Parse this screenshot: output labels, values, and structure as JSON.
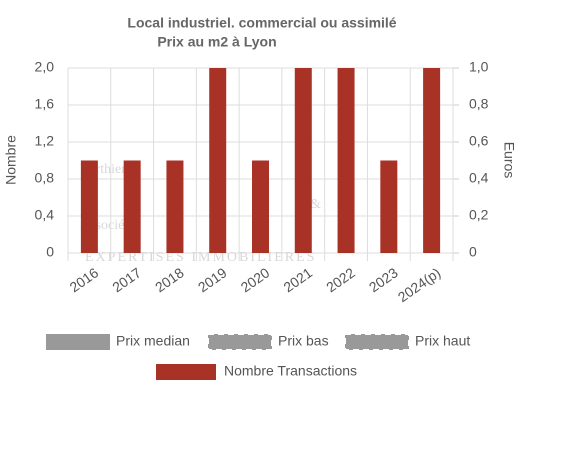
{
  "chart_data": {
    "type": "bar",
    "title": "Local industriel. commercial ou assimilé",
    "subtitle": "Prix au m2 à Lyon",
    "y_label": "Nombre",
    "y2_label": "Euros",
    "watermark": {
      "line1": "Berthier",
      "line2": "Associés",
      "symbol": "&",
      "tagline": "EXPERTISES IMMOBILIERES"
    },
    "categories": [
      "2016",
      "2017",
      "2018",
      "2019",
      "2020",
      "2021",
      "2022",
      "2023",
      "2024(p)"
    ],
    "series": [
      {
        "name": "Prix median",
        "color": "#999999",
        "style": "solid",
        "axis": "y2",
        "values": [
          null,
          null,
          null,
          null,
          null,
          null,
          null,
          null,
          null
        ]
      },
      {
        "name": "Prix bas",
        "color": "#999999",
        "style": "dashed",
        "axis": "y2",
        "values": [
          null,
          null,
          null,
          null,
          null,
          null,
          null,
          null,
          null
        ]
      },
      {
        "name": "Prix haut",
        "color": "#999999",
        "style": "dashed",
        "axis": "y2",
        "values": [
          null,
          null,
          null,
          null,
          null,
          null,
          null,
          null,
          null
        ]
      },
      {
        "name": "Nombre Transactions",
        "color": "#a93226",
        "style": "bar",
        "values": [
          1,
          1,
          1,
          2,
          1,
          2,
          2,
          1,
          2
        ]
      }
    ],
    "ylim": [
      0,
      2
    ],
    "yticks": [
      0,
      {
        "value": 0.4,
        "label": "0,4"
      },
      {
        "value": 0.8,
        "label": "0,8"
      },
      {
        "value": 1.2,
        "label": "1,2"
      },
      {
        "value": 1.6,
        "label": "1,6"
      },
      {
        "value": 2,
        "label": "2,0"
      }
    ],
    "y2lim": [
      0,
      1
    ],
    "y2ticks": [
      0,
      {
        "value": 0.2,
        "label": "0,2"
      },
      {
        "value": 0.4,
        "label": "0,4"
      },
      {
        "value": 0.6,
        "label": "0,6"
      },
      {
        "value": 0.8,
        "label": "0,8"
      },
      {
        "value": 1,
        "label": "1,0"
      }
    ],
    "grid": true
  }
}
